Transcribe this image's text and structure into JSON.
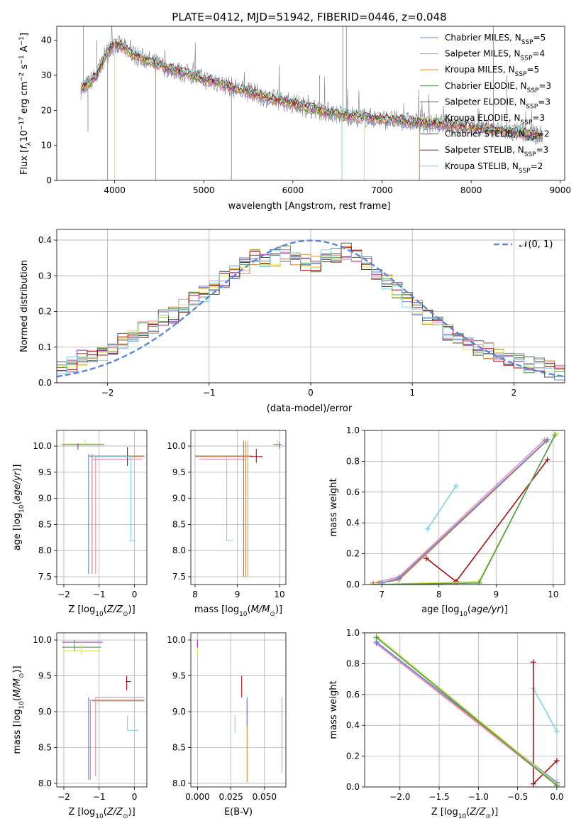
{
  "figure_title": "PLATE=0412, MJD=51942, FIBERID=0446, z=0.048",
  "colors": {
    "chabrier_miles": "#6a7fd8",
    "salpeter_miles": "#e88bb8",
    "kroupa_miles": "#d4882c",
    "chabrier_elodie": "#4f9a4f",
    "salpeter_elodie": "#9b30b8",
    "kroupa_elodie": "#d8e85a",
    "chabrier_stelib": "#555555",
    "salpeter_stelib": "#a01010",
    "kroupa_stelib": "#7fd4dc",
    "normal_curve": "#5b86d8",
    "data": "#808080"
  },
  "chart_data": [
    {
      "id": "spectrum",
      "type": "line",
      "title": "PLATE=0412, MJD=51942, FIBERID=0446, z=0.048",
      "xlabel": "wavelength [Angstrom, rest frame]",
      "ylabel": "Flux [fλ10^-17 erg cm^-2 s^-1 A^-1]",
      "xlim": [
        3350,
        9050
      ],
      "ylim": [
        0,
        44
      ],
      "xticks": [
        4000,
        5000,
        6000,
        7000,
        8000,
        9000
      ],
      "yticks": [
        0,
        10,
        20,
        30,
        40
      ],
      "grid": false,
      "legend_position": "top-right",
      "continuum": {
        "x": [
          3620,
          3700,
          3800,
          3900,
          4000,
          4100,
          4200,
          4400,
          4600,
          4800,
          5000,
          5200,
          5400,
          5600,
          5800,
          6000,
          6200,
          6400,
          6600,
          6800,
          7000,
          7200,
          7400,
          7600,
          7800,
          8000,
          8200,
          8400,
          8600,
          8800
        ],
        "y": [
          26,
          27.5,
          30,
          36,
          39,
          38,
          36,
          34,
          32,
          30.5,
          29,
          27.5,
          26,
          24.5,
          23,
          22,
          20.5,
          19.5,
          18.5,
          18,
          17.5,
          17,
          16.5,
          16.2,
          15.8,
          15.2,
          14.6,
          14,
          13.4,
          12.8
        ]
      },
      "series": [
        {
          "name": "Chabrier MILES, N_SSP=5",
          "key": "chabrier_miles"
        },
        {
          "name": "Salpeter MILES, N_SSP=4",
          "key": "salpeter_miles"
        },
        {
          "name": "Kroupa MILES, N_SSP=5",
          "key": "kroupa_miles"
        },
        {
          "name": "Chabrier ELODIE, N_SSP=3",
          "key": "chabrier_elodie"
        },
        {
          "name": "Salpeter ELODIE, N_SSP=3",
          "key": "salpeter_elodie"
        },
        {
          "name": "Kroupa ELODIE, N_SSP=3",
          "key": "kroupa_elodie"
        },
        {
          "name": "Chabrier STELIB, N_SSP=2",
          "key": "chabrier_stelib"
        },
        {
          "name": "Salpeter STELIB, N_SSP=3",
          "key": "salpeter_stelib"
        },
        {
          "name": "Kroupa STELIB, N_SSP=2",
          "key": "kroupa_stelib"
        }
      ]
    },
    {
      "id": "residuals",
      "type": "histogram",
      "xlabel": "(data-model)/error",
      "ylabel": "Normed distribution",
      "xlim": [
        -2.5,
        2.5
      ],
      "ylim": [
        0,
        0.43
      ],
      "xticks": [
        -2,
        -1,
        0,
        1,
        2
      ],
      "yticks": [
        0.0,
        0.1,
        0.2,
        0.3,
        0.4
      ],
      "grid": true,
      "legend": "𝒩(0, 1)",
      "legend_position": "top-right",
      "bin_edges_start": -2.5,
      "bin_width": 0.1,
      "mean_profile": [
        0.04,
        0.05,
        0.07,
        0.07,
        0.08,
        0.09,
        0.12,
        0.13,
        0.15,
        0.16,
        0.18,
        0.19,
        0.21,
        0.23,
        0.25,
        0.27,
        0.29,
        0.31,
        0.33,
        0.35,
        0.34,
        0.35,
        0.36,
        0.35,
        0.34,
        0.33,
        0.35,
        0.36,
        0.37,
        0.36,
        0.33,
        0.31,
        0.28,
        0.26,
        0.23,
        0.21,
        0.18,
        0.16,
        0.14,
        0.13,
        0.11,
        0.1,
        0.09,
        0.08,
        0.07,
        0.06,
        0.05,
        0.05,
        0.04,
        0.03
      ]
    },
    {
      "id": "age_vs_Z",
      "type": "scatter",
      "xlabel": "Z [log10(Z/Z☉)]",
      "ylabel": "age [log10(age/yr)]",
      "xlim": [
        -2.2,
        0.35
      ],
      "ylim": [
        7.35,
        10.3
      ],
      "xticks": [
        -2,
        -1,
        0
      ],
      "yticks": [
        7.5,
        8.0,
        8.5,
        9.0,
        9.5,
        10.0
      ],
      "grid": true
    },
    {
      "id": "age_vs_mass",
      "type": "scatter",
      "xlabel": "mass [log10(M/M☉)]",
      "xlim": [
        7.9,
        10.15
      ],
      "ylim": [
        7.35,
        10.3
      ],
      "xticks": [
        8,
        9,
        10
      ],
      "yticks": [
        7.5,
        8.0,
        8.5,
        9.0,
        9.5,
        10.0
      ],
      "grid": true
    },
    {
      "id": "weight_vs_age",
      "type": "line",
      "xlabel": "age [log10(age/yr)]",
      "ylabel": "mass weight",
      "xlim": [
        6.7,
        10.2
      ],
      "ylim": [
        0,
        1.0
      ],
      "xticks": [
        7,
        8,
        9,
        10
      ],
      "yticks": [
        0.0,
        0.2,
        0.4,
        0.6,
        0.8,
        1.0
      ],
      "grid": true,
      "series": [
        {
          "key": "kroupa_stelib",
          "x": [
            7.8,
            8.3
          ],
          "y": [
            0.36,
            0.64
          ]
        },
        {
          "key": "salpeter_miles",
          "x": [
            6.85,
            7.3,
            9.85
          ],
          "y": [
            0.01,
            0.05,
            0.94
          ]
        },
        {
          "key": "kroupa_miles",
          "x": [
            6.95,
            7.3,
            9.88
          ],
          "y": [
            0.01,
            0.03,
            0.93
          ]
        },
        {
          "key": "chabrier_miles",
          "x": [
            7.0,
            7.3,
            9.9
          ],
          "y": [
            0.01,
            0.04,
            0.94
          ]
        },
        {
          "key": "salpeter_stelib",
          "x": [
            7.78,
            8.3,
            9.9
          ],
          "y": [
            0.17,
            0.02,
            0.81
          ]
        },
        {
          "key": "kroupa_elodie",
          "x": [
            6.8,
            8.7,
            10.05
          ],
          "y": [
            0.0,
            0.02,
            0.98
          ]
        },
        {
          "key": "chabrier_elodie",
          "x": [
            6.85,
            8.7,
            10.03
          ],
          "y": [
            0.0,
            0.01,
            0.97
          ]
        }
      ]
    },
    {
      "id": "mass_vs_Z",
      "type": "scatter",
      "xlabel": "Z [log10(Z/Z☉)]",
      "ylabel": "mass [log10(M/M☉)]",
      "xlim": [
        -2.2,
        0.35
      ],
      "ylim": [
        7.95,
        10.1
      ],
      "xticks": [
        -2,
        -1,
        0
      ],
      "yticks": [
        8.0,
        8.5,
        9.0,
        9.5,
        10.0
      ],
      "grid": true
    },
    {
      "id": "mass_vs_ebv",
      "type": "scatter",
      "xlabel": "E(B-V)",
      "xlim": [
        -0.005,
        0.066
      ],
      "ylim": [
        7.95,
        10.1
      ],
      "xticks": [
        0.0,
        0.025,
        0.05
      ],
      "xtick_labels": [
        "0.000",
        "0.025",
        "0.050"
      ],
      "yticks": [
        8.0,
        8.5,
        9.0,
        9.5,
        10.0
      ],
      "grid": true
    },
    {
      "id": "weight_vs_Z",
      "type": "line",
      "xlabel": "Z [log10(Z/Z☉)]",
      "ylabel": "mass weight",
      "xlim": [
        -2.45,
        0.1
      ],
      "ylim": [
        0,
        1.0
      ],
      "xticks": [
        -2.0,
        -1.5,
        -1.0,
        -0.5,
        0.0
      ],
      "yticks": [
        0.0,
        0.2,
        0.4,
        0.6,
        0.8,
        1.0
      ],
      "grid": true,
      "series": [
        {
          "key": "kroupa_stelib",
          "x": [
            -0.3,
            0.0
          ],
          "y": [
            0.64,
            0.36
          ]
        },
        {
          "key": "salpeter_stelib",
          "x": [
            -0.3,
            -0.3,
            0.0,
            -0.3
          ],
          "y": [
            0.81,
            0.02,
            0.17,
            0.02
          ]
        },
        {
          "key": "salpeter_miles",
          "x": [
            -2.3,
            0.0
          ],
          "y": [
            0.93,
            0.01
          ]
        },
        {
          "key": "kroupa_miles",
          "x": [
            -2.3,
            0.0
          ],
          "y": [
            0.94,
            0.02
          ]
        },
        {
          "key": "chabrier_miles",
          "x": [
            -2.3,
            0.0
          ],
          "y": [
            0.94,
            0.03
          ]
        },
        {
          "key": "kroupa_elodie",
          "x": [
            -2.3,
            0.0
          ],
          "y": [
            0.98,
            0.02
          ]
        },
        {
          "key": "chabrier_elodie",
          "x": [
            -2.3,
            0.0
          ],
          "y": [
            0.97,
            0.01
          ]
        }
      ]
    }
  ]
}
